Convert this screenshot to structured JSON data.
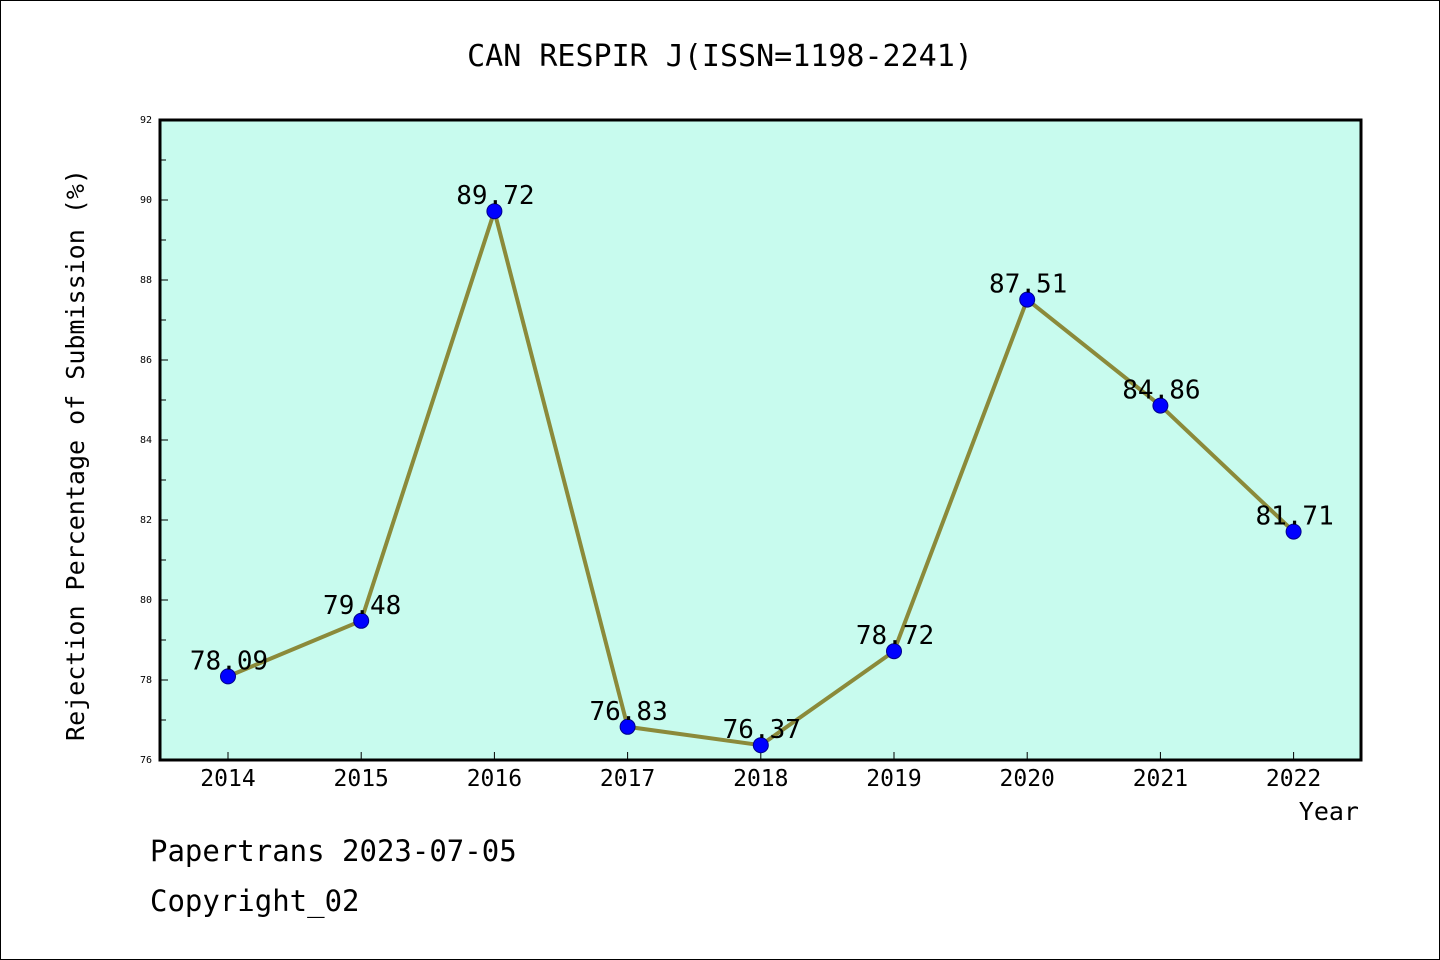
{
  "chart_data": {
    "type": "line",
    "title": "CAN RESPIR J(ISSN=1198-2241)",
    "xlabel": "Year",
    "ylabel": "Rejection Percentage of Submission (%)",
    "categories": [
      "2014",
      "2015",
      "2016",
      "2017",
      "2018",
      "2019",
      "2020",
      "2021",
      "2022"
    ],
    "values": [
      78.09,
      79.48,
      89.72,
      76.83,
      76.37,
      78.72,
      87.51,
      84.86,
      81.71
    ],
    "data_labels": [
      "78.09",
      "79.48",
      "89.72",
      "76.83",
      "76.37",
      "78.72",
      "87.51",
      "84.86",
      "81.71"
    ],
    "ylim": [
      76,
      92
    ],
    "yticks": [
      "76",
      "78",
      "80",
      "82",
      "84",
      "86",
      "88",
      "90",
      "92"
    ],
    "grid": false,
    "colors": {
      "plot_background": "#c8fbee",
      "line": "#8b8a3a",
      "marker": "#0000ff"
    }
  },
  "footer": {
    "line1": "Papertrans 2023-07-05",
    "line2": "Copyright_02"
  }
}
